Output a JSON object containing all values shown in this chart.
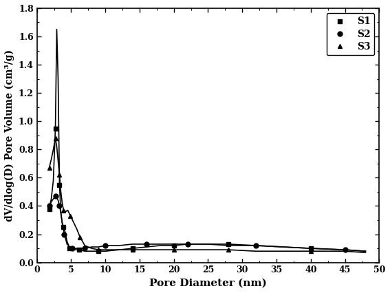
{
  "title": "",
  "xlabel": "Pore Diameter (nm)",
  "ylabel": "dV/dlog(D) Pore Volume (cm³/g)",
  "xlim": [
    0,
    50
  ],
  "ylim": [
    0.0,
    1.8
  ],
  "xticks": [
    0,
    5,
    10,
    15,
    20,
    25,
    30,
    35,
    40,
    45,
    50
  ],
  "yticks": [
    0.0,
    0.2,
    0.4,
    0.6,
    0.8,
    1.0,
    1.2,
    1.4,
    1.6,
    1.8
  ],
  "series": {
    "S1": {
      "x": [
        1.8,
        2.1,
        2.4,
        2.7,
        2.9,
        3.1,
        3.3,
        3.5,
        3.7,
        3.9,
        4.1,
        4.4,
        4.8,
        5.2,
        5.7,
        6.2,
        7.0,
        8.0,
        9.0,
        10.0,
        12.0,
        14.0,
        16.0,
        18.0,
        20.0,
        22.0,
        25.0,
        28.0,
        32.0,
        36.0,
        40.0,
        45.0,
        48.0
      ],
      "y": [
        0.38,
        0.45,
        0.58,
        0.95,
        1.65,
        1.3,
        0.55,
        0.35,
        0.28,
        0.25,
        0.22,
        0.15,
        0.1,
        0.09,
        0.09,
        0.09,
        0.08,
        0.08,
        0.08,
        0.08,
        0.09,
        0.1,
        0.11,
        0.12,
        0.12,
        0.13,
        0.13,
        0.13,
        0.12,
        0.11,
        0.1,
        0.09,
        0.08
      ],
      "marker": "s",
      "color": "#000000",
      "label": "S1"
    },
    "S2": {
      "x": [
        1.8,
        2.1,
        2.4,
        2.7,
        2.9,
        3.1,
        3.3,
        3.5,
        3.7,
        4.0,
        4.4,
        4.8,
        5.2,
        5.7,
        6.2,
        7.0,
        8.0,
        9.0,
        10.0,
        12.0,
        14.0,
        16.0,
        18.0,
        20.0,
        22.0,
        25.0,
        28.0,
        32.0,
        36.0,
        40.0,
        45.0,
        48.0
      ],
      "y": [
        0.4,
        0.43,
        0.45,
        0.47,
        0.46,
        0.44,
        0.4,
        0.35,
        0.28,
        0.2,
        0.13,
        0.11,
        0.1,
        0.1,
        0.1,
        0.1,
        0.11,
        0.11,
        0.12,
        0.12,
        0.13,
        0.13,
        0.13,
        0.13,
        0.13,
        0.13,
        0.12,
        0.12,
        0.11,
        0.1,
        0.09,
        0.08
      ],
      "marker": "o",
      "color": "#000000",
      "label": "S2"
    },
    "S3": {
      "x": [
        1.8,
        2.1,
        2.4,
        2.7,
        2.9,
        3.1,
        3.3,
        3.5,
        3.7,
        3.9,
        4.2,
        4.5,
        4.9,
        5.3,
        5.8,
        6.3,
        7.0,
        8.0,
        9.0,
        10.0,
        12.0,
        14.0,
        16.0,
        18.0,
        20.0,
        22.0,
        25.0,
        28.0,
        32.0,
        36.0,
        40.0,
        45.0,
        48.0
      ],
      "y": [
        0.67,
        0.73,
        0.8,
        0.88,
        0.82,
        0.72,
        0.62,
        0.5,
        0.42,
        0.37,
        0.36,
        0.37,
        0.33,
        0.29,
        0.24,
        0.18,
        0.12,
        0.1,
        0.09,
        0.09,
        0.09,
        0.09,
        0.09,
        0.09,
        0.09,
        0.09,
        0.09,
        0.09,
        0.08,
        0.08,
        0.08,
        0.08,
        0.07
      ],
      "marker": "^",
      "color": "#000000",
      "label": "S3"
    }
  },
  "background_color": "#ffffff",
  "linewidth": 1.2,
  "markersize": 5
}
